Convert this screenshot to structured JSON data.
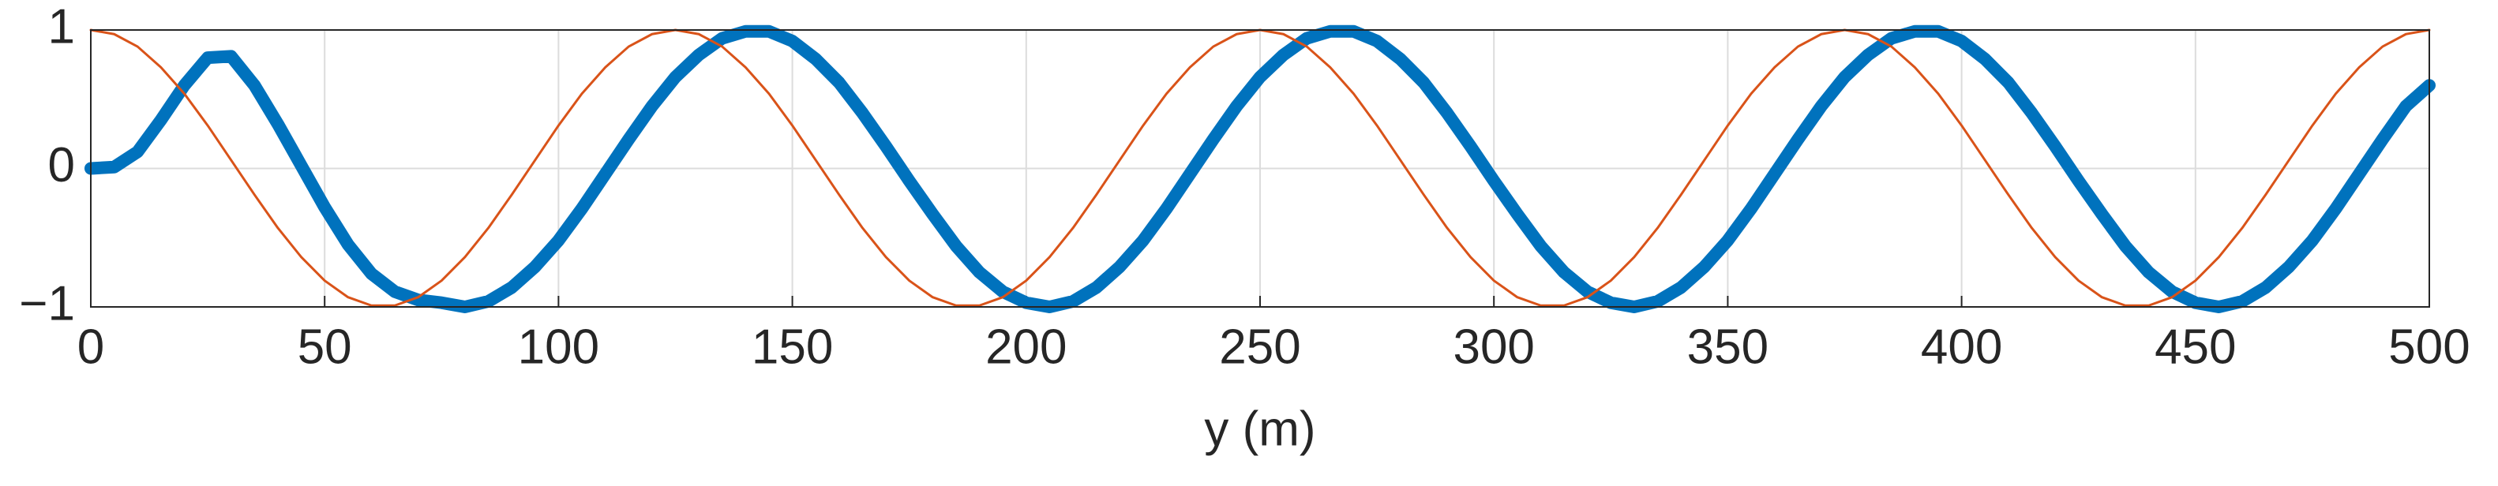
{
  "chart_data": {
    "type": "line",
    "xlabel": "y (m)",
    "x": [
      0,
      5,
      10,
      15,
      20,
      25,
      30,
      35,
      40,
      45,
      50,
      55,
      60,
      65,
      70,
      75,
      80,
      85,
      90,
      95,
      100,
      105,
      110,
      115,
      120,
      125,
      130,
      135,
      140,
      145,
      150,
      155,
      160,
      165,
      170,
      175,
      180,
      185,
      190,
      195,
      200,
      205,
      210,
      215,
      220,
      225,
      230,
      235,
      240,
      245,
      250,
      255,
      260,
      265,
      270,
      275,
      280,
      285,
      290,
      295,
      300,
      305,
      310,
      315,
      320,
      325,
      330,
      335,
      340,
      345,
      350,
      355,
      360,
      365,
      370,
      375,
      380,
      385,
      390,
      395,
      400,
      405,
      410,
      415,
      420,
      425,
      430,
      435,
      440,
      445,
      450,
      455,
      460,
      465,
      470,
      475,
      480,
      485,
      490,
      495,
      500
    ],
    "series": [
      {
        "color": "#0072bd",
        "width": 16,
        "values": [
          0,
          0.01,
          0.12,
          0.35,
          0.6,
          0.8,
          0.81,
          0.6,
          0.32,
          0.02,
          -0.28,
          -0.55,
          -0.76,
          -0.89,
          -0.95,
          -0.97,
          -1.0,
          -0.96,
          -0.86,
          -0.71,
          -0.52,
          -0.29,
          -0.04,
          0.21,
          0.45,
          0.66,
          0.82,
          0.94,
          0.99,
          0.99,
          0.92,
          0.79,
          0.62,
          0.4,
          0.16,
          -0.09,
          -0.33,
          -0.56,
          -0.75,
          -0.89,
          -0.97,
          -1.0,
          -0.96,
          -0.86,
          -0.71,
          -0.52,
          -0.29,
          -0.04,
          0.21,
          0.45,
          0.66,
          0.82,
          0.94,
          0.99,
          0.99,
          0.92,
          0.79,
          0.62,
          0.4,
          0.16,
          -0.09,
          -0.33,
          -0.56,
          -0.75,
          -0.89,
          -0.97,
          -1.0,
          -0.96,
          -0.86,
          -0.71,
          -0.52,
          -0.29,
          -0.04,
          0.21,
          0.45,
          0.66,
          0.82,
          0.94,
          0.99,
          0.99,
          0.92,
          0.79,
          0.62,
          0.4,
          0.16,
          -0.09,
          -0.33,
          -0.56,
          -0.75,
          -0.89,
          -0.97,
          -1.0,
          -0.96,
          -0.86,
          -0.71,
          -0.52,
          -0.29,
          -0.04,
          0.21,
          0.45,
          0.6
        ]
      },
      {
        "color": "#d95319",
        "width": 3,
        "values": [
          1,
          0.97,
          0.88,
          0.73,
          0.54,
          0.31,
          0.06,
          -0.19,
          -0.43,
          -0.64,
          -0.81,
          -0.93,
          -0.99,
          -0.99,
          -0.93,
          -0.81,
          -0.64,
          -0.43,
          -0.19,
          0.06,
          0.31,
          0.54,
          0.73,
          0.88,
          0.97,
          1,
          0.97,
          0.88,
          0.73,
          0.54,
          0.31,
          0.06,
          -0.19,
          -0.43,
          -0.64,
          -0.81,
          -0.93,
          -0.99,
          -0.99,
          -0.93,
          -0.81,
          -0.64,
          -0.43,
          -0.19,
          0.06,
          0.31,
          0.54,
          0.73,
          0.88,
          0.97,
          1,
          0.97,
          0.88,
          0.73,
          0.54,
          0.31,
          0.06,
          -0.19,
          -0.43,
          -0.64,
          -0.81,
          -0.93,
          -0.99,
          -0.99,
          -0.93,
          -0.81,
          -0.64,
          -0.43,
          -0.19,
          0.06,
          0.31,
          0.54,
          0.73,
          0.88,
          0.97,
          1,
          0.97,
          0.88,
          0.73,
          0.54,
          0.31,
          0.06,
          -0.19,
          -0.43,
          -0.64,
          -0.81,
          -0.93,
          -0.99,
          -0.99,
          -0.93,
          -0.81,
          -0.64,
          -0.43,
          -0.19,
          0.06,
          0.31,
          0.54,
          0.73,
          0.88,
          0.97,
          1
        ]
      }
    ],
    "xlim": [
      0,
      500
    ],
    "xticks": [
      0,
      50,
      100,
      150,
      200,
      250,
      300,
      350,
      400,
      450,
      500
    ],
    "ylim": [
      -1,
      1
    ],
    "yticks": [
      {
        "value": -1,
        "label": "−1"
      },
      0,
      1
    ],
    "grid": true
  }
}
